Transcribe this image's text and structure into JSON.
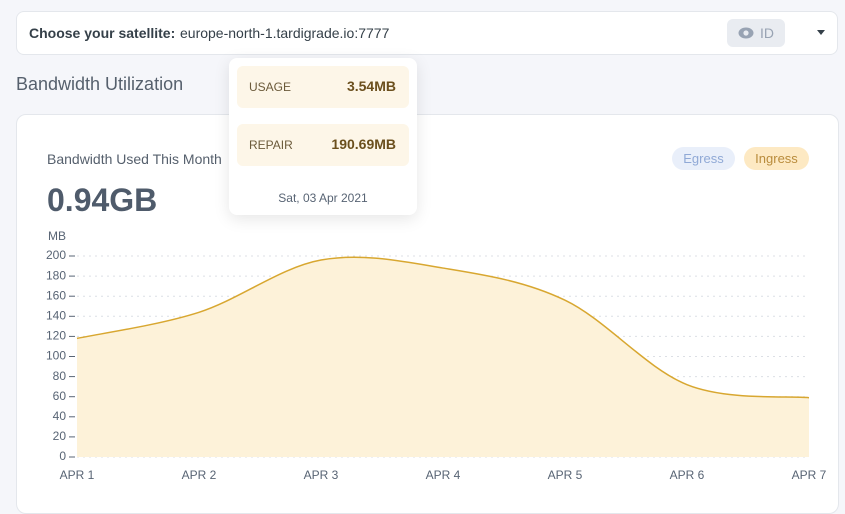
{
  "header": {
    "label": "Choose your satellite:",
    "satellite": "europe-north-1.tardigrade.io:7777",
    "id_button": "ID"
  },
  "section_title": "Bandwidth Utilization",
  "card": {
    "title": "Bandwidth Used This Month",
    "total": "0.94GB",
    "inactive_legend": "Egress"
  },
  "tooltip": {
    "rows": [
      {
        "label": "USAGE",
        "value": "3.54MB"
      },
      {
        "label": "REPAIR",
        "value": "190.69MB"
      }
    ],
    "date": "Sat, 03 Apr 2021"
  },
  "chart_data": {
    "type": "area",
    "y_label": "MB",
    "categories": [
      "APR 1",
      "APR 2",
      "APR 3",
      "APR 4",
      "APR 5",
      "APR 6",
      "APR 7"
    ],
    "series": [
      {
        "name": "Ingress",
        "color": "#d8a730",
        "fill": "#fdf2d9",
        "values": [
          118,
          144,
          196,
          188,
          156,
          72,
          59
        ]
      }
    ],
    "ylim": [
      0,
      200
    ],
    "yticks": [
      0,
      20,
      40,
      60,
      80,
      100,
      120,
      140,
      160,
      180,
      200
    ],
    "grid": true
  }
}
